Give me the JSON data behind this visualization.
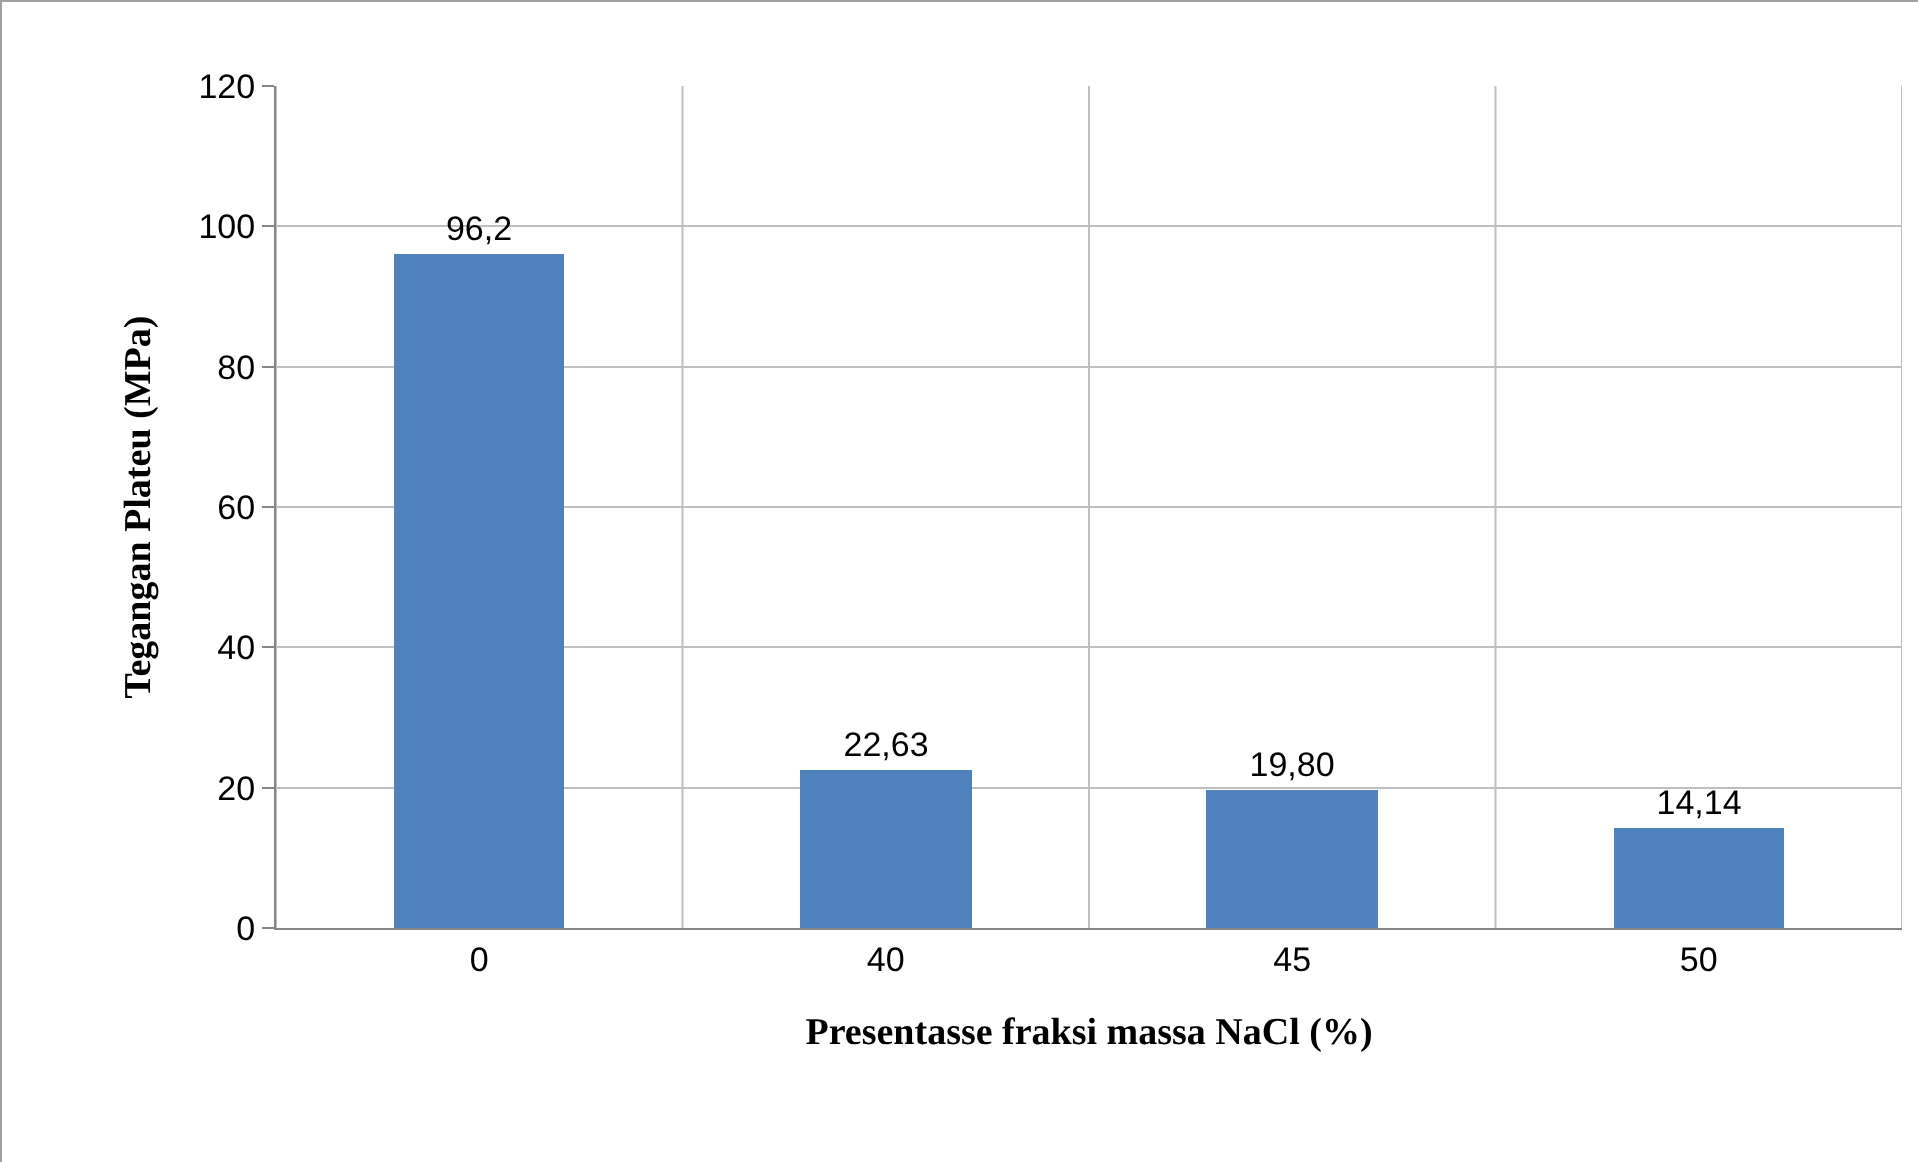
{
  "chart_data": {
    "type": "bar",
    "xlabel": "Presentasse fraksi massa NaCl (%)",
    "ylabel": "Tegangan Plateu (MPa)",
    "categories": [
      "0",
      "40",
      "45",
      "50"
    ],
    "values": [
      96.2,
      22.63,
      19.8,
      14.14
    ],
    "value_labels": [
      "96,2",
      "22,63",
      "19,80",
      "14,14"
    ],
    "color": "#4f81bd",
    "ylim": [
      0,
      120
    ],
    "yticks": [
      0,
      20,
      40,
      60,
      80,
      100,
      120
    ],
    "grid": true
  }
}
